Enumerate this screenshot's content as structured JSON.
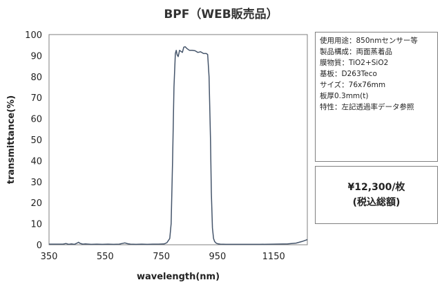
{
  "chart_data": {
    "type": "line",
    "title": "BPF（WEB販売品）",
    "xlabel": "wavelength(nm)",
    "ylabel": "transmittance(%)",
    "xlim": [
      350,
      1270
    ],
    "ylim": [
      0,
      100
    ],
    "x_ticks": [
      350,
      550,
      750,
      950,
      1150
    ],
    "y_ticks": [
      0,
      10,
      20,
      30,
      40,
      50,
      60,
      70,
      80,
      90,
      100
    ],
    "grid": false,
    "series": [
      {
        "color": "#44546a",
        "x": [
          350,
          400,
          410,
          420,
          430,
          440,
          450,
          455,
          460,
          470,
          480,
          500,
          520,
          540,
          560,
          580,
          600,
          610,
          620,
          630,
          640,
          660,
          680,
          700,
          720,
          740,
          760,
          770,
          780,
          785,
          790,
          795,
          800,
          803,
          806,
          810,
          815,
          820,
          825,
          830,
          835,
          840,
          845,
          850,
          860,
          870,
          880,
          890,
          900,
          910,
          915,
          920,
          925,
          928,
          932,
          936,
          940,
          945,
          950,
          960,
          980,
          1000,
          1050,
          1100,
          1150,
          1200,
          1230,
          1250,
          1265,
          1270
        ],
        "y": [
          0.3,
          0.3,
          0.6,
          0.2,
          0.4,
          0.2,
          0.8,
          1.2,
          0.7,
          0.3,
          0.4,
          0.2,
          0.3,
          0.2,
          0.3,
          0.2,
          0.3,
          0.6,
          0.9,
          0.5,
          0.3,
          0.2,
          0.3,
          0.2,
          0.3,
          0.3,
          0.4,
          1.0,
          3.0,
          10.0,
          40.0,
          75.0,
          91.0,
          92.5,
          90.5,
          89.5,
          92.5,
          92.0,
          91.5,
          94.0,
          94.2,
          93.5,
          93.0,
          92.5,
          92.5,
          92.3,
          91.5,
          91.8,
          91.0,
          91.0,
          90.5,
          80.0,
          50.0,
          25.0,
          8.0,
          3.0,
          1.5,
          0.8,
          0.5,
          0.3,
          0.2,
          0.2,
          0.2,
          0.2,
          0.3,
          0.4,
          0.8,
          1.5,
          2.2,
          2.5
        ]
      }
    ]
  },
  "spec": {
    "lines": [
      "使用用途：850nmセンサー等",
      "製品構成：両面蒸着品",
      "膜物質：TiO2+SiO2",
      "基板：D263Teco",
      "サイズ：76x76mm",
      "板厚0.3mm(t)",
      "特性：左記透過率データ参照"
    ]
  },
  "price": {
    "amount": "¥12,300/枚",
    "note": "(税込総額)"
  }
}
